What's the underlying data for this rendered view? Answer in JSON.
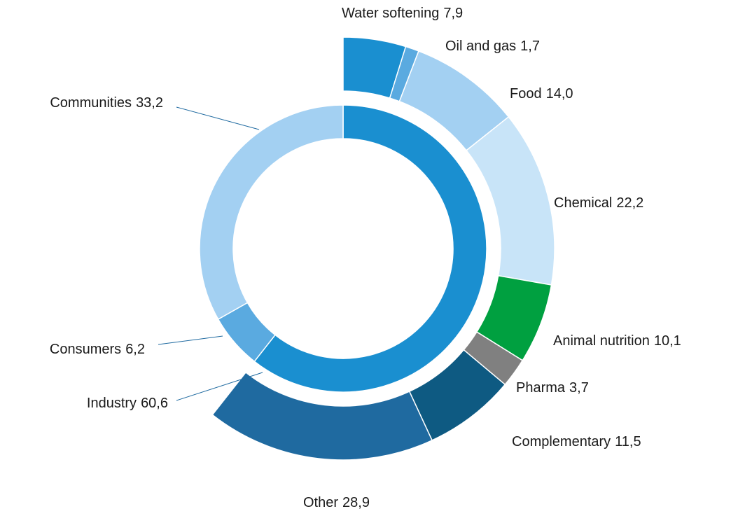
{
  "chart_data": {
    "type": "sunburst",
    "rings": [
      {
        "categories": [
          "Industry",
          "Consumers",
          "Communities"
        ],
        "values": [
          60.6,
          6.2,
          33.2
        ],
        "value_labels": [
          "60,6",
          "6,2",
          "33,2"
        ],
        "colors": [
          "#1a8fd0",
          "#5aaae0",
          "#a3d0f2"
        ]
      },
      {
        "categories": [
          "Water softening",
          "Oil and gas",
          "Food",
          "Chemical",
          "Animal nutrition",
          "Pharma",
          "Complementary",
          "Other"
        ],
        "values": [
          7.9,
          1.7,
          14.0,
          22.2,
          10.1,
          3.7,
          11.5,
          28.9
        ],
        "value_labels": [
          "7,9",
          "1,7",
          "14,0",
          "22,2",
          "10,1",
          "3,7",
          "11,5",
          "28,9"
        ],
        "colors": [
          "#1a8fd0",
          "#5aaae0",
          "#a3d0f2",
          "#c8e4f8",
          "#00a040",
          "#808080",
          "#0e5a82",
          "#1f6aa0"
        ]
      }
    ]
  }
}
